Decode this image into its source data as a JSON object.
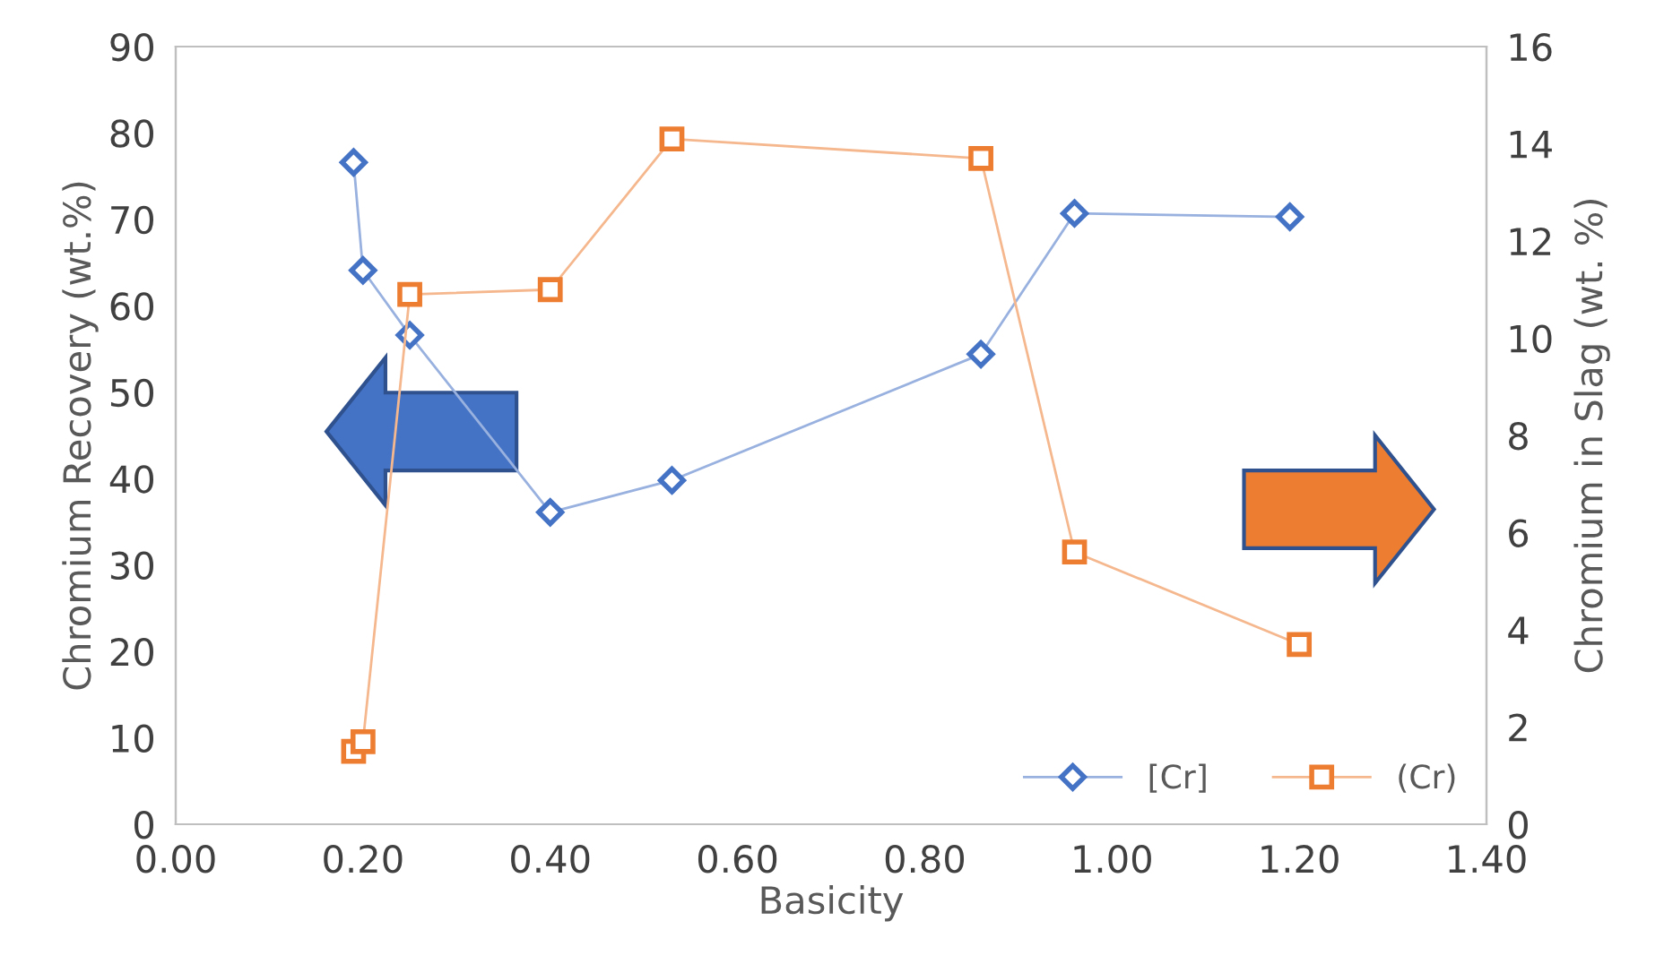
{
  "chart_data": {
    "type": "line",
    "xlabel": "Basicity",
    "ylabel": "Chromium Recovery (wt.%)",
    "y2label": "Chromium in Slag (wt. %)",
    "xlim": [
      0,
      1.4
    ],
    "xticks": [
      {
        "value": 0,
        "label": "0.00"
      },
      {
        "value": 0.2,
        "label": "0.20"
      },
      {
        "value": 0.4,
        "label": "0.40"
      },
      {
        "value": 0.6,
        "label": "0.60"
      },
      {
        "value": 0.8,
        "label": "0.80"
      },
      {
        "value": 1.0,
        "label": "1.00"
      },
      {
        "value": 1.2,
        "label": "1.20"
      },
      {
        "value": 1.4,
        "label": "1.40"
      }
    ],
    "ylim": [
      0,
      90
    ],
    "yticks": [
      0,
      10,
      20,
      30,
      40,
      50,
      60,
      70,
      80,
      90
    ],
    "y2lim": [
      0,
      16
    ],
    "y2ticks": [
      0,
      2,
      4,
      6,
      8,
      10,
      12,
      14,
      16
    ],
    "grid": false,
    "legend": "bottom right",
    "series": [
      {
        "name": "[Cr]",
        "color": "#4472c4",
        "marker": "diamond",
        "x": [
          0.19,
          0.2,
          0.25,
          0.4,
          0.53,
          0.86,
          0.96,
          1.19
        ],
        "values": [
          76.6,
          64.1,
          56.6,
          36.1,
          39.8,
          54.4,
          70.7,
          70.3
        ]
      },
      {
        "name": "(Cr)",
        "color": "#ed7d31",
        "marker": "square",
        "axis": "y2",
        "x": [
          0.19,
          0.2,
          0.25,
          0.4,
          0.53,
          0.86,
          0.96,
          1.2
        ],
        "values": [
          1.5,
          1.7,
          10.9,
          11.0,
          14.1,
          13.7,
          5.6,
          3.7
        ]
      }
    ]
  }
}
